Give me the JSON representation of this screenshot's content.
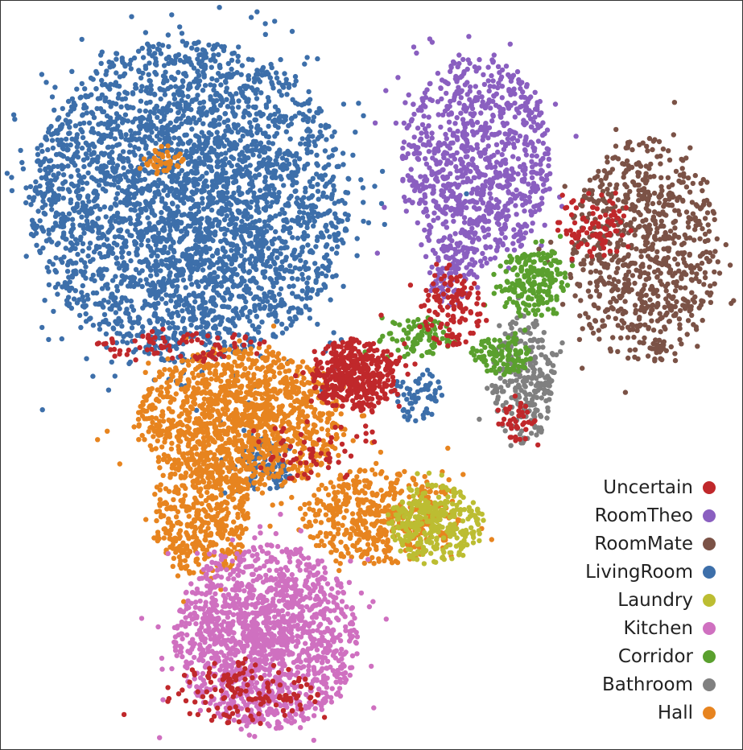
{
  "chart_data": {
    "type": "scatter",
    "title": "",
    "xlabel": "",
    "ylabel": "",
    "grid": false,
    "axes_visible": false,
    "legend_position": "bottom-right",
    "series": [
      {
        "name": "Uncertain",
        "color": "#c0282b",
        "clusters": [
          {
            "cx": 440,
            "cy": 465,
            "rx": 55,
            "ry": 45,
            "n": 420
          },
          {
            "cx": 740,
            "cy": 280,
            "rx": 50,
            "ry": 40,
            "n": 90
          },
          {
            "cx": 560,
            "cy": 380,
            "rx": 40,
            "ry": 50,
            "n": 120
          },
          {
            "cx": 300,
            "cy": 860,
            "rx": 95,
            "ry": 40,
            "n": 140
          },
          {
            "cx": 220,
            "cy": 430,
            "rx": 110,
            "ry": 20,
            "n": 80
          },
          {
            "cx": 640,
            "cy": 520,
            "rx": 25,
            "ry": 30,
            "n": 40
          },
          {
            "cx": 380,
            "cy": 560,
            "rx": 90,
            "ry": 40,
            "n": 60
          }
        ]
      },
      {
        "name": "RoomTheo",
        "color": "#8a5fc0",
        "clusters": [
          {
            "cx": 590,
            "cy": 200,
            "rx": 95,
            "ry": 130,
            "n": 950
          },
          {
            "cx": 560,
            "cy": 340,
            "rx": 30,
            "ry": 40,
            "n": 80
          }
        ]
      },
      {
        "name": "RoomMate",
        "color": "#7b5246",
        "clusters": [
          {
            "cx": 800,
            "cy": 310,
            "rx": 95,
            "ry": 140,
            "n": 800
          }
        ]
      },
      {
        "name": "LivingRoom",
        "color": "#3d6faa",
        "clusters": [
          {
            "cx": 235,
            "cy": 250,
            "rx": 200,
            "ry": 200,
            "n": 3400
          },
          {
            "cx": 330,
            "cy": 575,
            "rx": 35,
            "ry": 35,
            "n": 110
          },
          {
            "cx": 520,
            "cy": 490,
            "rx": 30,
            "ry": 35,
            "n": 60
          }
        ]
      },
      {
        "name": "Laundry",
        "color": "#bcbd32",
        "clusters": [
          {
            "cx": 540,
            "cy": 650,
            "rx": 60,
            "ry": 50,
            "n": 320
          }
        ]
      },
      {
        "name": "Kitchen",
        "color": "#cf70c0",
        "clusters": [
          {
            "cx": 330,
            "cy": 790,
            "rx": 115,
            "ry": 115,
            "n": 1500
          }
        ]
      },
      {
        "name": "Corridor",
        "color": "#5aa02e",
        "clusters": [
          {
            "cx": 660,
            "cy": 350,
            "rx": 45,
            "ry": 45,
            "n": 200
          },
          {
            "cx": 520,
            "cy": 420,
            "rx": 50,
            "ry": 25,
            "n": 90
          },
          {
            "cx": 620,
            "cy": 440,
            "rx": 40,
            "ry": 25,
            "n": 100
          }
        ]
      },
      {
        "name": "Bathroom",
        "color": "#808080",
        "clusters": [
          {
            "cx": 650,
            "cy": 470,
            "rx": 40,
            "ry": 80,
            "n": 260
          }
        ]
      },
      {
        "name": "Hall",
        "color": "#e7841f",
        "clusters": [
          {
            "cx": 300,
            "cy": 520,
            "rx": 130,
            "ry": 90,
            "n": 1300
          },
          {
            "cx": 250,
            "cy": 640,
            "rx": 60,
            "ry": 80,
            "n": 400
          },
          {
            "cx": 470,
            "cy": 640,
            "rx": 100,
            "ry": 60,
            "n": 500
          },
          {
            "cx": 200,
            "cy": 200,
            "rx": 30,
            "ry": 20,
            "n": 40
          }
        ]
      }
    ]
  }
}
